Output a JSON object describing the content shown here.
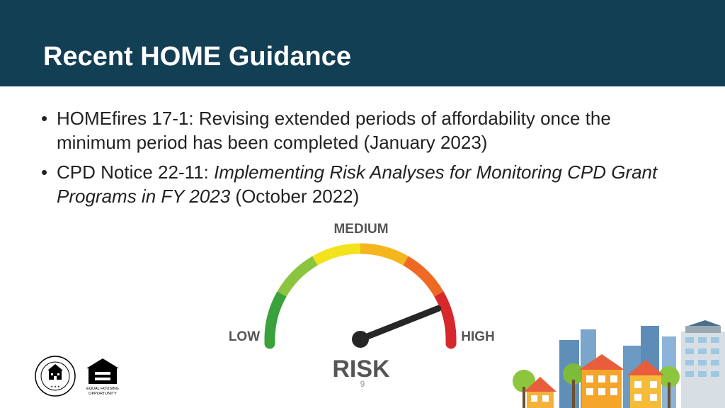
{
  "slide": {
    "title": "Recent HOME Guidance",
    "bullets": [
      {
        "text": "HOMEfires 17-1: Revising extended periods of affordability once the minimum period has been completed (January 2023)"
      },
      {
        "prefix": "CPD Notice 22-11: ",
        "italic": "Implementing Risk Analyses for Monitoring CPD Grant Programs in FY 2023",
        "suffix": " (October 2022)"
      }
    ],
    "page_number": "9"
  },
  "gauge": {
    "label_low": "LOW",
    "label_medium": "MEDIUM",
    "label_high": "HIGH",
    "label_main": "RISK",
    "needle_level_percent": 88,
    "colors": [
      "#3aa13c",
      "#8bc53f",
      "#f2e31d",
      "#f4b51d",
      "#ee6a22",
      "#d7282b"
    ]
  },
  "logos": {
    "hud_seal_text": "U.S. DEPARTMENT OF HOUSING AND URBAN DEVELOPMENT",
    "equal_housing_text": "EQUAL HOUSING OPPORTUNITY"
  },
  "icons": [
    "hud-seal-icon",
    "equal-housing-icon",
    "city-illustration-icon"
  ]
}
